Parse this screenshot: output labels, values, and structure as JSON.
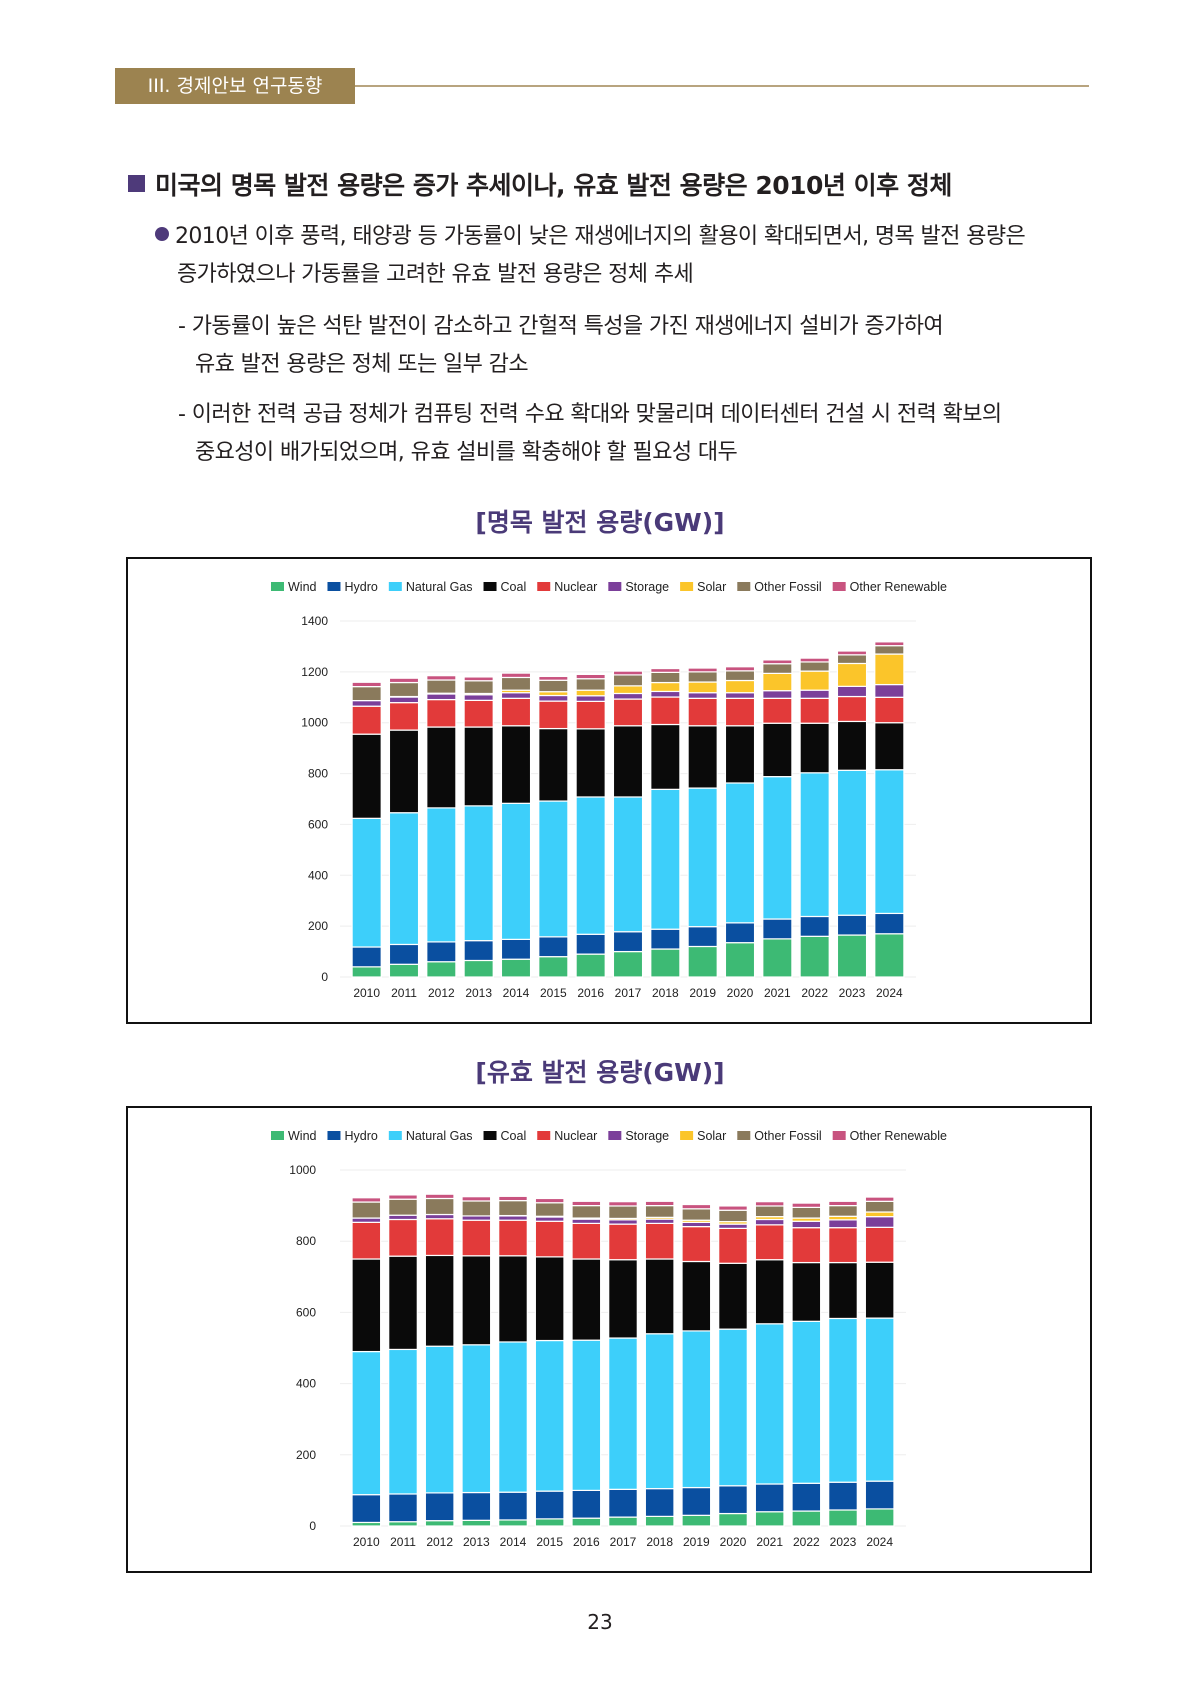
{
  "header": {
    "section_tag": "III. 경제안보 연구동향"
  },
  "section": {
    "title": "미국의 명목 발전 용량은 증가 추세이나, 유효 발전 용량은 2010년 이후 정체",
    "bullet": {
      "line1": "2010년 이후 풍력, 태양광 등 가동률이 낮은 재생에너지의 활용이 확대되면서, 명목 발전 용량은",
      "line2": "증가하였으나 가동률을 고려한 유효 발전 용량은 정체 추세"
    },
    "subitems": [
      {
        "line1": "- 가동률이 높은 석탄 발전이 감소하고 간헐적 특성을 가진 재생에너지 설비가 증가하여",
        "line2": "유효 발전 용량은 정체 또는 일부 감소"
      },
      {
        "line1": "- 이러한 전력 공급 정체가 컴퓨팅 전력 수요 확대와 맞물리며 데이터센터 건설 시 전력 확보의",
        "line2": "중요성이 배가되었으며, 유효 설비를 확충해야 할 필요성 대두"
      }
    ]
  },
  "page_number": "23",
  "series_colors": {
    "Wind": "#3dba74",
    "Hydro": "#0a4fa0",
    "Natural Gas": "#3dcffa",
    "Coal": "#0a0a0a",
    "Nuclear": "#e23a3a",
    "Storage": "#7b3f9a",
    "Solar": "#fbc52a",
    "Other Fossil": "#8a7a5c",
    "Other Renewable": "#c8537f"
  },
  "chart_data": [
    {
      "type": "bar",
      "stacked": true,
      "title": "[명목 발전 용량(GW)]",
      "xlabel": "",
      "ylabel": "",
      "ylim": [
        0,
        1400
      ],
      "yticks": [
        0,
        200,
        400,
        600,
        800,
        1000,
        1200,
        1400
      ],
      "grid": true,
      "legend": "top-center",
      "categories": [
        "2010",
        "2011",
        "2012",
        "2013",
        "2014",
        "2015",
        "2016",
        "2017",
        "2018",
        "2019",
        "2020",
        "2021",
        "2022",
        "2023",
        "2024"
      ],
      "series": [
        {
          "name": "Wind",
          "values": [
            40,
            50,
            60,
            65,
            70,
            80,
            90,
            100,
            110,
            120,
            135,
            150,
            160,
            165,
            170
          ]
        },
        {
          "name": "Hydro",
          "values": [
            78,
            78,
            78,
            78,
            78,
            78,
            78,
            78,
            78,
            78,
            78,
            78,
            78,
            78,
            80
          ]
        },
        {
          "name": "Natural Gas",
          "values": [
            506,
            518,
            527,
            530,
            535,
            534,
            540,
            530,
            550,
            545,
            550,
            560,
            565,
            570,
            565
          ]
        },
        {
          "name": "Coal",
          "values": [
            331,
            325,
            318,
            310,
            305,
            285,
            268,
            280,
            255,
            245,
            225,
            210,
            195,
            192,
            185
          ]
        },
        {
          "name": "Nuclear",
          "values": [
            110,
            108,
            108,
            105,
            108,
            108,
            108,
            105,
            108,
            108,
            108,
            98,
            98,
            98,
            100
          ]
        },
        {
          "name": "Storage",
          "values": [
            22,
            22,
            22,
            22,
            22,
            22,
            22,
            22,
            22,
            22,
            22,
            30,
            32,
            40,
            50
          ]
        },
        {
          "name": "Solar",
          "values": [
            0,
            2,
            3,
            5,
            10,
            15,
            22,
            30,
            35,
            42,
            48,
            68,
            75,
            90,
            120
          ]
        },
        {
          "name": "Other Fossil",
          "values": [
            55,
            55,
            52,
            50,
            50,
            45,
            45,
            43,
            40,
            40,
            38,
            38,
            36,
            34,
            33
          ]
        },
        {
          "name": "Other Renewable",
          "values": [
            17,
            17,
            17,
            15,
            17,
            15,
            17,
            15,
            15,
            15,
            16,
            15,
            15,
            15,
            15
          ]
        }
      ]
    },
    {
      "type": "bar",
      "stacked": true,
      "title": "[유효 발전 용량(GW)]",
      "xlabel": "",
      "ylabel": "",
      "ylim": [
        0,
        1000
      ],
      "yticks": [
        0,
        200,
        400,
        600,
        800,
        1000
      ],
      "grid": true,
      "legend": "top-center",
      "categories": [
        "2010",
        "2011",
        "2012",
        "2013",
        "2014",
        "2015",
        "2016",
        "2017",
        "2018",
        "2019",
        "2020",
        "2021",
        "2022",
        "2023",
        "2024"
      ],
      "series": [
        {
          "name": "Wind",
          "values": [
            10,
            12,
            15,
            16,
            17,
            20,
            22,
            25,
            27,
            30,
            35,
            40,
            42,
            45,
            48
          ]
        },
        {
          "name": "Hydro",
          "values": [
            78,
            78,
            78,
            78,
            78,
            78,
            78,
            78,
            78,
            78,
            78,
            78,
            78,
            78,
            78
          ]
        },
        {
          "name": "Natural Gas",
          "values": [
            402,
            406,
            412,
            415,
            422,
            423,
            422,
            425,
            435,
            440,
            440,
            450,
            455,
            460,
            458
          ]
        },
        {
          "name": "Coal",
          "values": [
            260,
            262,
            255,
            250,
            242,
            235,
            228,
            220,
            210,
            195,
            185,
            180,
            165,
            157,
            157
          ]
        },
        {
          "name": "Nuclear",
          "values": [
            103,
            103,
            103,
            100,
            100,
            100,
            100,
            100,
            100,
            98,
            98,
            98,
            98,
            98,
            98
          ]
        },
        {
          "name": "Storage",
          "values": [
            12,
            12,
            12,
            12,
            12,
            12,
            12,
            12,
            12,
            12,
            12,
            15,
            18,
            22,
            30
          ]
        },
        {
          "name": "Solar",
          "values": [
            0,
            0,
            0,
            0,
            1,
            2,
            3,
            4,
            5,
            6,
            7,
            8,
            9,
            10,
            13
          ]
        },
        {
          "name": "Other Fossil",
          "values": [
            45,
            45,
            45,
            42,
            42,
            38,
            35,
            35,
            33,
            32,
            32,
            30,
            30,
            30,
            30
          ]
        },
        {
          "name": "Other Renewable",
          "values": [
            12,
            12,
            12,
            12,
            12,
            12,
            12,
            12,
            12,
            12,
            12,
            12,
            12,
            12,
            12
          ]
        }
      ]
    }
  ]
}
